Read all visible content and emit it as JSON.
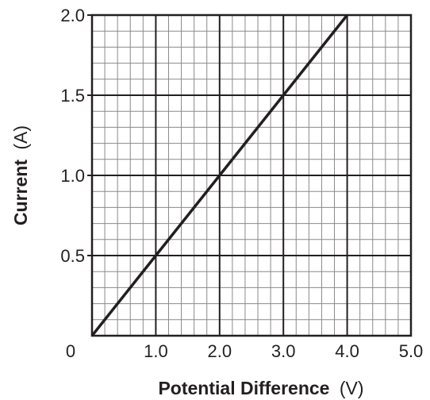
{
  "chart_data": {
    "type": "line",
    "xlabel": "Potential Difference",
    "xunit": "(V)",
    "ylabel": "Current",
    "yunit": "(A)",
    "xlim": [
      0,
      5
    ],
    "ylim": [
      0,
      2
    ],
    "x_ticks": [
      {
        "value": 0,
        "label": "0"
      },
      {
        "value": 1,
        "label": "1.0"
      },
      {
        "value": 2,
        "label": "2.0"
      },
      {
        "value": 3,
        "label": "3.0"
      },
      {
        "value": 4,
        "label": "4.0"
      },
      {
        "value": 5,
        "label": "5.0"
      }
    ],
    "y_ticks": [
      {
        "value": 0.5,
        "label": "0.5"
      },
      {
        "value": 1.0,
        "label": "1.0"
      },
      {
        "value": 1.5,
        "label": "1.5"
      },
      {
        "value": 2.0,
        "label": "2.0"
      }
    ],
    "grid": {
      "major_x": 1,
      "major_y": 0.5,
      "minor_x": 0.2,
      "minor_y": 0.1
    },
    "series": [
      {
        "x": [
          0,
          1,
          2,
          3,
          4
        ],
        "y": [
          0,
          0.5,
          1.0,
          1.5,
          2.0
        ]
      }
    ],
    "colors": {
      "major_grid": "#231f20",
      "minor_grid": "#8a8a8a",
      "line": "#231f20"
    }
  }
}
